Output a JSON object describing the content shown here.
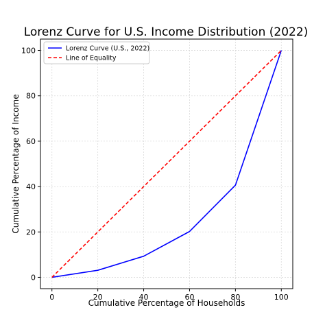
{
  "chart_data": {
    "type": "line",
    "title": "Lorenz Curve for U.S. Income Distribution (2022)",
    "xlabel": "Cumulative Percentage of Households",
    "ylabel": "Cumulative Percentage of Income",
    "xlim": [
      -5,
      105
    ],
    "ylim": [
      -5,
      105
    ],
    "xticks": [
      0,
      20,
      40,
      60,
      80,
      100
    ],
    "yticks": [
      0,
      20,
      40,
      60,
      80,
      100
    ],
    "grid": true,
    "legend_position": "top-left",
    "series": [
      {
        "name": "Lorenz Curve (U.S., 2022)",
        "style": "solid",
        "color": "#0000ff",
        "x": [
          0,
          20,
          40,
          60,
          80,
          100
        ],
        "y": [
          0,
          3.1,
          9.3,
          20.2,
          40.6,
          100
        ]
      },
      {
        "name": "Line of Equality",
        "style": "dashed",
        "color": "#ff0000",
        "x": [
          0,
          100
        ],
        "y": [
          0,
          100
        ]
      }
    ]
  }
}
